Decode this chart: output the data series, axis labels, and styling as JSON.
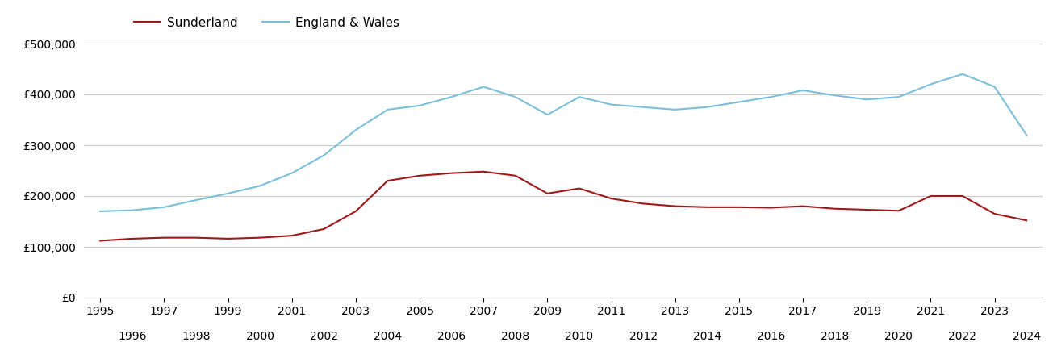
{
  "years": [
    1995,
    1996,
    1997,
    1998,
    1999,
    2000,
    2001,
    2002,
    2003,
    2004,
    2005,
    2006,
    2007,
    2008,
    2009,
    2010,
    2011,
    2012,
    2013,
    2014,
    2015,
    2016,
    2017,
    2018,
    2019,
    2020,
    2021,
    2022,
    2023,
    2024
  ],
  "sunderland": [
    112000,
    116000,
    118000,
    118000,
    116000,
    118000,
    122000,
    135000,
    170000,
    230000,
    240000,
    245000,
    248000,
    240000,
    205000,
    215000,
    195000,
    185000,
    180000,
    178000,
    178000,
    177000,
    180000,
    175000,
    173000,
    171000,
    200000,
    200000,
    165000,
    152000
  ],
  "england_wales": [
    170000,
    172000,
    178000,
    192000,
    205000,
    220000,
    245000,
    280000,
    330000,
    370000,
    378000,
    395000,
    415000,
    395000,
    360000,
    395000,
    380000,
    375000,
    370000,
    375000,
    385000,
    395000,
    408000,
    398000,
    390000,
    395000,
    420000,
    440000,
    415000,
    320000
  ],
  "sunderland_color": "#9e1a1a",
  "england_wales_color": "#7bbfdb",
  "sunderland_label": "Sunderland",
  "england_wales_label": "England & Wales",
  "ylim": [
    0,
    500000
  ],
  "yticks": [
    0,
    100000,
    200000,
    300000,
    400000,
    500000
  ],
  "background_color": "#ffffff",
  "grid_color": "#cccccc",
  "line_width": 1.5,
  "figsize": [
    13.05,
    4.5
  ],
  "dpi": 100
}
